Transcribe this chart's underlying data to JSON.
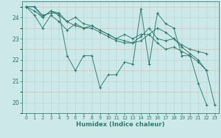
{
  "title": "",
  "xlabel": "Humidex (Indice chaleur)",
  "ylabel": "",
  "bg_color": "#cce8e8",
  "grid_color": "#b8d4d4",
  "line_color": "#2d7a6e",
  "xlim": [
    -0.5,
    23.5
  ],
  "ylim": [
    19.5,
    24.75
  ],
  "yticks": [
    20,
    21,
    22,
    23,
    24
  ],
  "xticks": [
    0,
    1,
    2,
    3,
    4,
    5,
    6,
    7,
    8,
    9,
    10,
    11,
    12,
    13,
    14,
    15,
    16,
    17,
    18,
    19,
    20,
    21,
    22,
    23
  ],
  "series": [
    [
      24.5,
      24.5,
      24.1,
      24.2,
      24.2,
      22.2,
      21.5,
      22.2,
      22.2,
      20.7,
      21.3,
      21.3,
      21.9,
      21.8,
      24.4,
      21.8,
      24.2,
      23.7,
      23.5,
      22.2,
      22.2,
      20.9,
      19.9,
      null
    ],
    [
      24.5,
      24.1,
      23.5,
      24.1,
      23.8,
      23.4,
      23.7,
      23.5,
      23.6,
      23.4,
      23.2,
      23.0,
      22.9,
      22.8,
      23.1,
      23.5,
      23.0,
      22.9,
      23.0,
      22.7,
      22.5,
      22.4,
      22.3,
      null
    ],
    [
      24.5,
      24.3,
      24.0,
      24.3,
      24.2,
      23.8,
      24.0,
      23.7,
      23.6,
      23.4,
      23.2,
      23.0,
      23.2,
      23.0,
      23.2,
      23.2,
      22.8,
      22.5,
      22.6,
      22.4,
      22.2,
      21.9,
      21.5,
      null
    ],
    [
      24.5,
      24.5,
      24.0,
      24.3,
      24.1,
      23.8,
      23.6,
      23.5,
      23.5,
      23.3,
      23.1,
      22.9,
      22.8,
      22.8,
      22.9,
      23.2,
      23.5,
      23.3,
      23.0,
      22.6,
      22.3,
      22.0,
      21.5,
      19.9
    ]
  ]
}
